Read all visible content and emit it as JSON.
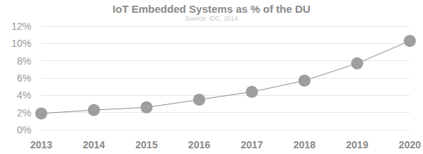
{
  "chart_data": {
    "type": "line",
    "title": "IoT Embedded Systems as % of the DU",
    "subtitle": "Source: IDC, 2014",
    "categories": [
      "2013",
      "2014",
      "2015",
      "2016",
      "2017",
      "2018",
      "2019",
      "2020"
    ],
    "values": [
      1.9,
      2.3,
      2.6,
      3.5,
      4.4,
      5.7,
      7.7,
      10.3
    ],
    "color": "#9e9e9e",
    "marker": "circle",
    "ylim": [
      0,
      12
    ],
    "yticks": [
      {
        "value": 0,
        "label": "0%"
      },
      {
        "value": 2,
        "label": "2%"
      },
      {
        "value": 4,
        "label": "4%"
      },
      {
        "value": 6,
        "label": "6%"
      },
      {
        "value": 8,
        "label": "8%"
      },
      {
        "value": 10,
        "label": "10%"
      },
      {
        "value": 12,
        "label": "12%"
      }
    ],
    "grid": true
  }
}
